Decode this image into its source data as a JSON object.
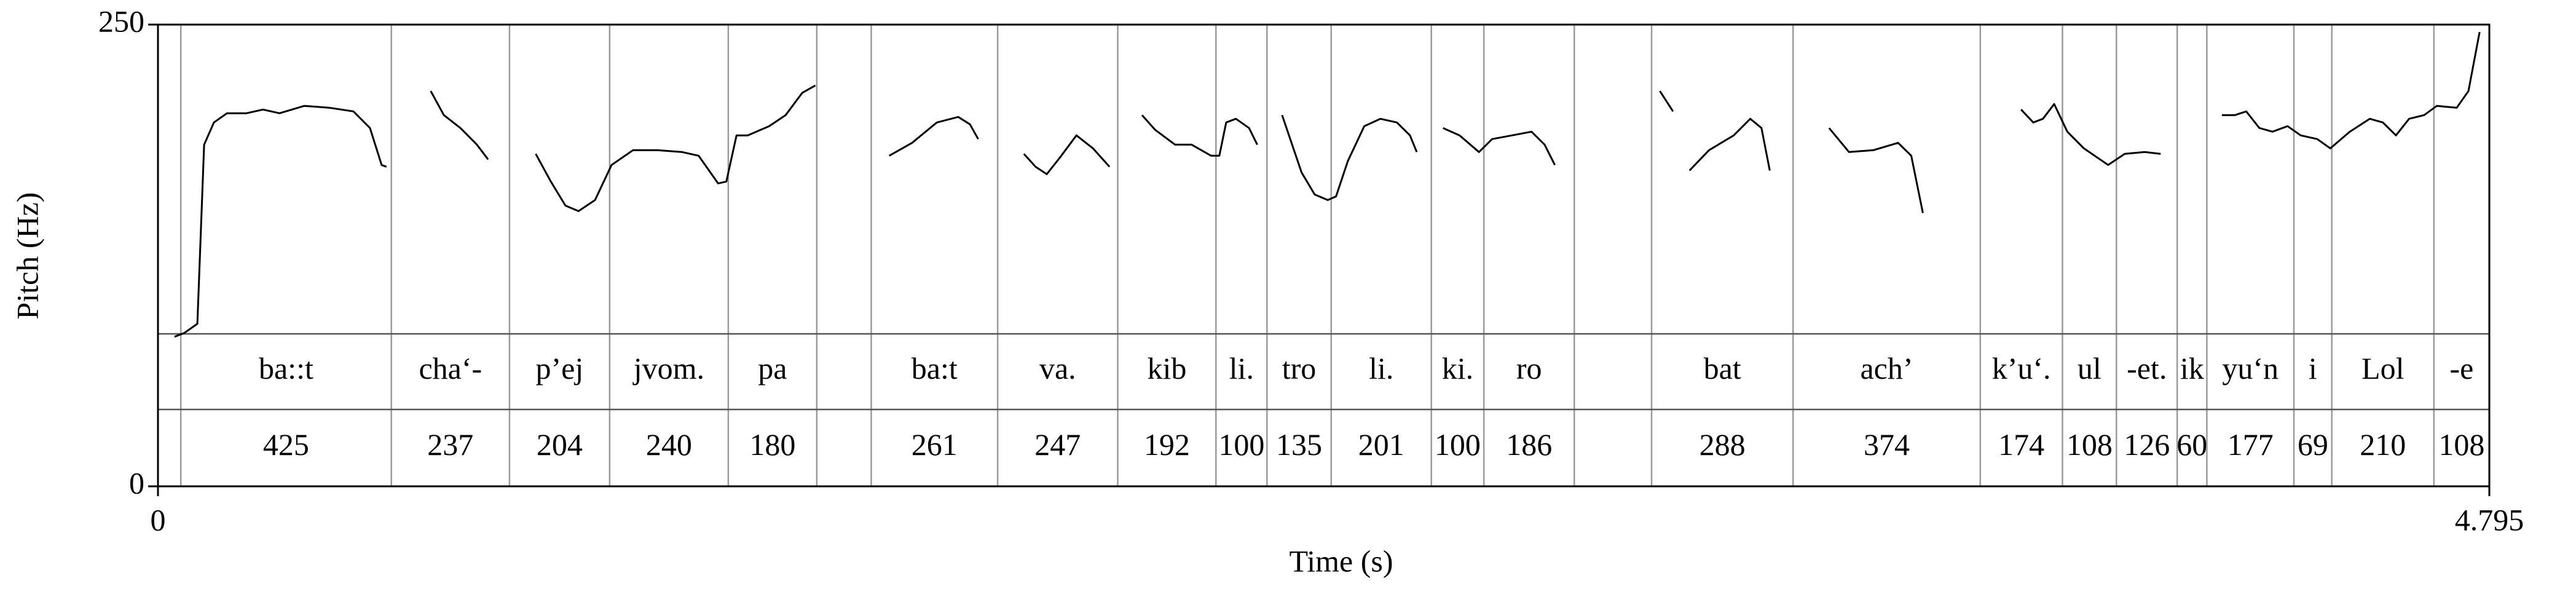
{
  "chart_data": {
    "type": "line",
    "xlabel": "Time (s)",
    "ylabel": "Pitch (Hz)",
    "xlim": [
      0,
      4.795
    ],
    "ylim": [
      0,
      250
    ],
    "xticks": [
      0,
      4.795
    ],
    "yticks": [
      0,
      250
    ],
    "series": [
      {
        "color": "#000000",
        "x": [
          0.034,
          0.054,
          0.081,
          0.095,
          0.115,
          0.142,
          0.182,
          0.216,
          0.25,
          0.301,
          0.352,
          0.402,
          0.436,
          0.46,
          0.47,
          null,
          0.561,
          0.588,
          0.622,
          0.656,
          0.679,
          null,
          0.777,
          0.808,
          0.838,
          0.865,
          0.899,
          0.933,
          0.977,
          1.027,
          1.078,
          1.112,
          1.152,
          1.169,
          1.19,
          1.213,
          1.257,
          1.291,
          1.325,
          1.352,
          null,
          1.504,
          1.551,
          1.602,
          1.646,
          1.67,
          1.687,
          null,
          1.781,
          1.805,
          1.828,
          1.855,
          1.889,
          1.923,
          1.957,
          null,
          2.024,
          2.051,
          2.092,
          2.126,
          2.166,
          2.183,
          2.197,
          2.217,
          2.244,
          2.261,
          null,
          2.312,
          2.352,
          2.379,
          2.406,
          2.423,
          2.447,
          2.481,
          2.514,
          2.548,
          2.575,
          2.589,
          null,
          2.643,
          2.677,
          2.717,
          2.744,
          2.785,
          2.825,
          2.852,
          2.873,
          null,
          3.089,
          3.116,
          null,
          3.15,
          3.19,
          3.241,
          3.275,
          3.298,
          3.315,
          null,
          3.437,
          3.478,
          3.528,
          3.579,
          3.606,
          3.63,
          null,
          3.832,
          3.857,
          3.877,
          3.9,
          3.927,
          3.961,
          4.011,
          4.045,
          4.086,
          4.119,
          null,
          4.245,
          4.272,
          4.295,
          4.322,
          4.349,
          4.38,
          4.407,
          4.441,
          4.468,
          4.508,
          4.549,
          4.576,
          4.603,
          4.63,
          4.661,
          4.687,
          4.728,
          4.752,
          4.775
        ],
        "values": [
          81,
          83,
          88,
          185,
          197,
          202,
          202,
          204,
          202,
          206,
          205,
          203,
          194,
          174,
          173,
          null,
          214,
          201,
          194,
          185,
          177,
          null,
          180,
          165,
          152,
          149,
          155,
          174,
          182,
          182,
          181,
          179,
          164,
          165,
          190,
          190,
          195,
          201,
          213,
          217,
          null,
          179,
          186,
          197,
          200,
          196,
          188,
          null,
          180,
          173,
          169,
          178,
          190,
          183,
          173,
          null,
          201,
          193,
          185,
          185,
          179,
          179,
          197,
          199,
          194,
          185,
          null,
          201,
          170,
          158,
          155,
          157,
          176,
          195,
          199,
          197,
          190,
          181,
          null,
          194,
          190,
          181,
          188,
          190,
          192,
          185,
          174,
          null,
          214,
          203,
          null,
          171,
          182,
          190,
          199,
          194,
          171,
          null,
          194,
          181,
          182,
          186,
          179,
          148,
          null,
          204,
          197,
          199,
          207,
          192,
          183,
          174,
          180,
          181,
          180,
          null,
          201,
          201,
          203,
          194,
          192,
          195,
          190,
          188,
          183,
          192,
          199,
          197,
          190,
          199,
          201,
          206,
          205,
          214,
          246
        ]
      }
    ],
    "intervals": [
      {
        "start": 0,
        "end": 0.047,
        "label": null,
        "duration": null
      },
      {
        "start": 0.047,
        "end": 0.48,
        "label": "ba::t",
        "duration": 425
      },
      {
        "start": 0.48,
        "end": 0.723,
        "label": "cha‘-",
        "duration": 237
      },
      {
        "start": 0.723,
        "end": 0.929,
        "label": "p’ej",
        "duration": 204
      },
      {
        "start": 0.929,
        "end": 1.173,
        "label": "jvom.",
        "duration": 240
      },
      {
        "start": 1.173,
        "end": 1.355,
        "label": "pa",
        "duration": 180
      },
      {
        "start": 1.355,
        "end": 1.467,
        "label": null,
        "duration": null
      },
      {
        "start": 1.467,
        "end": 1.727,
        "label": "ba:t",
        "duration": 261
      },
      {
        "start": 1.727,
        "end": 1.974,
        "label": "va.",
        "duration": 247
      },
      {
        "start": 1.974,
        "end": 2.176,
        "label": "kib",
        "duration": 192
      },
      {
        "start": 2.176,
        "end": 2.281,
        "label": "li.",
        "duration": 100
      },
      {
        "start": 2.281,
        "end": 2.413,
        "label": "tro",
        "duration": 135
      },
      {
        "start": 2.413,
        "end": 2.619,
        "label": "li.",
        "duration": 201
      },
      {
        "start": 2.619,
        "end": 2.727,
        "label": "ki.",
        "duration": 100
      },
      {
        "start": 2.727,
        "end": 2.913,
        "label": "ro",
        "duration": 186
      },
      {
        "start": 2.913,
        "end": 3.072,
        "label": null,
        "duration": null
      },
      {
        "start": 3.072,
        "end": 3.363,
        "label": "bat",
        "duration": 288
      },
      {
        "start": 3.363,
        "end": 3.748,
        "label": "ach’",
        "duration": 374
      },
      {
        "start": 3.748,
        "end": 3.917,
        "label": "k’u‘.",
        "duration": 174
      },
      {
        "start": 3.917,
        "end": 4.028,
        "label": "ul",
        "duration": 108
      },
      {
        "start": 4.028,
        "end": 4.153,
        "label": "-et.",
        "duration": 126
      },
      {
        "start": 4.153,
        "end": 4.214,
        "label": "ik",
        "duration": 60
      },
      {
        "start": 4.214,
        "end": 4.393,
        "label": "yu‘n",
        "duration": 177
      },
      {
        "start": 4.393,
        "end": 4.471,
        "label": "i",
        "duration": 69
      },
      {
        "start": 4.471,
        "end": 4.681,
        "label": "Lol",
        "duration": 210
      },
      {
        "start": 4.681,
        "end": 4.795,
        "label": "-e",
        "duration": 108
      }
    ]
  }
}
